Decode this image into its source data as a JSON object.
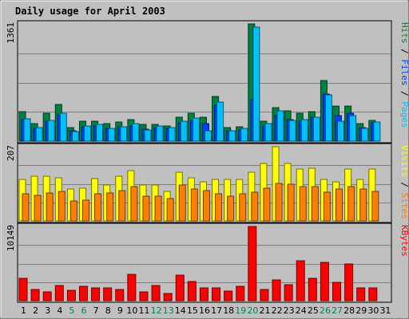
{
  "colors": {
    "background": "#C0C0C0",
    "plot": "#C0C0C0",
    "title": "#0000AA",
    "grid": "#808080",
    "weekday_label": "#000000",
    "weekend_label": "#00805C",
    "hits": "#008040",
    "files": "#0040FF",
    "pages": "#00C0FF",
    "visits": "#FFFF00",
    "sites": "#FF8000",
    "kbytes": "#FF0000",
    "separator": "#000000"
  },
  "chart_data": {
    "type": "bar",
    "title": "Daily usage for April 2003",
    "categories": [
      "1",
      "2",
      "3",
      "4",
      "5",
      "6",
      "7",
      "8",
      "9",
      "10",
      "11",
      "12",
      "13",
      "14",
      "15",
      "16",
      "17",
      "18",
      "19",
      "20",
      "21",
      "22",
      "23",
      "24",
      "25",
      "26",
      "27",
      "28",
      "29",
      "30",
      "31"
    ],
    "weekend_days": [
      "5",
      "6",
      "12",
      "13",
      "19",
      "20",
      "26",
      "27"
    ],
    "panels": [
      {
        "id": "hits-files-pages",
        "max_label": "1361",
        "ylim": [
          0,
          1361
        ],
        "axis_labels": [
          {
            "text": "Pages",
            "color": "#00C0FF"
          },
          {
            "text": " / ",
            "color": "#000000"
          },
          {
            "text": "Files",
            "color": "#0040FF"
          },
          {
            "text": " / ",
            "color": "#000000"
          },
          {
            "text": "Hits",
            "color": "#008040"
          }
        ],
        "series": [
          {
            "name": "Hits",
            "color": "#008040",
            "values": [
              340,
              200,
              320,
              430,
              160,
              230,
              230,
              200,
              220,
              250,
              190,
              190,
              180,
              280,
              320,
              280,
              520,
              160,
              170,
              1361,
              230,
              390,
              350,
              320,
              340,
              700,
              410,
              410,
              200,
              240,
              0
            ]
          },
          {
            "name": "Files",
            "color": "#0040FF",
            "values": [
              250,
              150,
              230,
              310,
              120,
              170,
              180,
              150,
              170,
              180,
              140,
              160,
              150,
              210,
              240,
              200,
              420,
              120,
              130,
              480,
              180,
              300,
              250,
              230,
              280,
              550,
              300,
              320,
              160,
              210,
              0
            ]
          },
          {
            "name": "Pages",
            "color": "#00C0FF",
            "values": [
              260,
              160,
              240,
              320,
              110,
              180,
              190,
              150,
              170,
              200,
              130,
              180,
              160,
              230,
              270,
              120,
              450,
              120,
              150,
              1320,
              200,
              350,
              240,
              250,
              280,
              540,
              230,
              300,
              150,
              220,
              0
            ]
          }
        ]
      },
      {
        "id": "visits-sites",
        "max_label": "207",
        "ylim": [
          0,
          207
        ],
        "axis_labels": [
          {
            "text": "Sites",
            "color": "#FF8000"
          },
          {
            "text": " / ",
            "color": "#000000"
          },
          {
            "text": "Visits",
            "color": "#FFFF00"
          }
        ],
        "series": [
          {
            "name": "Visits",
            "color": "#FFFF00",
            "values": [
              115,
              125,
              125,
              120,
              90,
              92,
              118,
              100,
              125,
              140,
              100,
              100,
              82,
              135,
              120,
              110,
              115,
              115,
              115,
              135,
              160,
              207,
              160,
              145,
              148,
              115,
              110,
              145,
              115,
              145,
              0
            ]
          },
          {
            "name": "Sites",
            "color": "#FF8000",
            "values": [
              75,
              72,
              78,
              82,
              55,
              58,
              75,
              78,
              85,
              95,
              70,
              68,
              62,
              100,
              88,
              85,
              75,
              70,
              75,
              80,
              92,
              105,
              102,
              95,
              95,
              80,
              90,
              95,
              90,
              82,
              0
            ]
          }
        ]
      },
      {
        "id": "kbytes",
        "max_label": "10149",
        "ylim": [
          0,
          10149
        ],
        "axis_labels": [
          {
            "text": "KBytes",
            "color": "#FF0000"
          }
        ],
        "series": [
          {
            "name": "KBytes",
            "color": "#FF0000",
            "values": [
              3100,
              1500,
              1200,
              2050,
              1400,
              2000,
              1800,
              1750,
              1500,
              3600,
              1200,
              2100,
              1000,
              3500,
              2600,
              1700,
              1700,
              1300,
              1950,
              10149,
              1500,
              2800,
              2200,
              5500,
              3100,
              5200,
              2500,
              5000,
              1700,
              1700,
              0
            ]
          }
        ]
      }
    ]
  }
}
